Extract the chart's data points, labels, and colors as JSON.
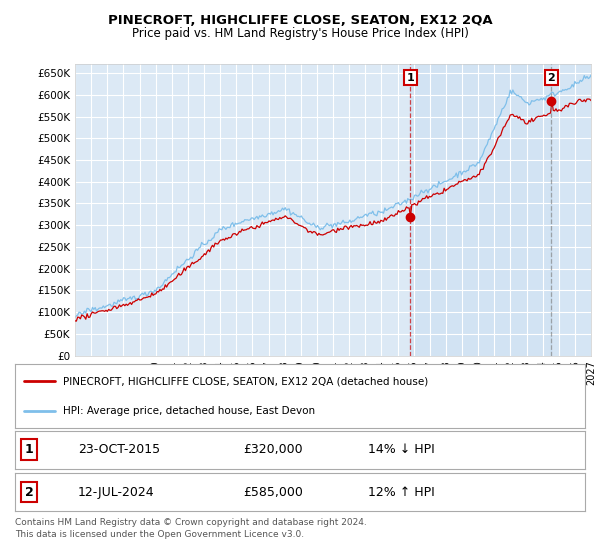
{
  "title": "PINECROFT, HIGHCLIFFE CLOSE, SEATON, EX12 2QA",
  "subtitle": "Price paid vs. HM Land Registry's House Price Index (HPI)",
  "ylabel_ticks": [
    "£0",
    "£50K",
    "£100K",
    "£150K",
    "£200K",
    "£250K",
    "£300K",
    "£350K",
    "£400K",
    "£450K",
    "£500K",
    "£550K",
    "£600K",
    "£650K"
  ],
  "ytick_values": [
    0,
    50000,
    100000,
    150000,
    200000,
    250000,
    300000,
    350000,
    400000,
    450000,
    500000,
    550000,
    600000,
    650000
  ],
  "xlim": [
    1995,
    2027
  ],
  "ylim": [
    0,
    670000
  ],
  "bg_color": "#dce9f5",
  "grid_color": "#ffffff",
  "hpi_color": "#7fbfea",
  "price_color": "#cc0000",
  "shade_color": "#dce9f5",
  "sale1_x": 2015.8,
  "sale1_y": 320000,
  "sale2_x": 2024.55,
  "sale2_y": 585000,
  "legend_line1": "PINECROFT, HIGHCLIFFE CLOSE, SEATON, EX12 2QA (detached house)",
  "legend_line2": "HPI: Average price, detached house, East Devon",
  "sale1_label": "1",
  "sale1_date": "23-OCT-2015",
  "sale1_price": "£320,000",
  "sale1_note": "14% ↓ HPI",
  "sale2_label": "2",
  "sale2_date": "12-JUL-2024",
  "sale2_price": "£585,000",
  "sale2_note": "12% ↑ HPI",
  "footnote": "Contains HM Land Registry data © Crown copyright and database right 2024.\nThis data is licensed under the Open Government Licence v3.0."
}
